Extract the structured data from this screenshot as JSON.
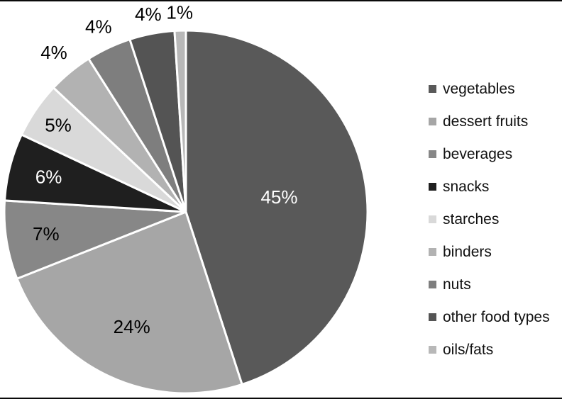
{
  "chart_data": {
    "type": "pie",
    "title": "",
    "categories": [
      "vegetables",
      "dessert fruits",
      "beverages",
      "snacks",
      "starches",
      "binders",
      "nuts",
      "other food types",
      "oils/fats"
    ],
    "values": [
      45,
      24,
      7,
      6,
      5,
      4,
      4,
      4,
      1
    ],
    "data_labels": [
      "45%",
      "24%",
      "7%",
      "6%",
      "5%",
      "4%",
      "4%",
      "4%",
      "1%"
    ],
    "colors": [
      "#595959",
      "#a6a6a6",
      "#878787",
      "#1f1f1f",
      "#d9d9d9",
      "#b2b2b2",
      "#7e7e7e",
      "#545454",
      "#b8b8b8"
    ],
    "label_colors": [
      "#ffffff",
      "#000000",
      "#000000",
      "#ffffff",
      "#000000",
      "#000000",
      "#000000",
      "#000000",
      "#000000"
    ],
    "label_placement": [
      "inside",
      "inside",
      "inside",
      "inside",
      "inside",
      "outside",
      "outside",
      "outside",
      "outside"
    ],
    "label_radius_frac": [
      0.52,
      0.7,
      0.78,
      0.78,
      0.85,
      1.14,
      1.13,
      1.11,
      1.1
    ],
    "start_angle_deg": 0,
    "direction": "clockwise",
    "separator_color": "#ffffff",
    "legend_position": "right",
    "grid": false
  }
}
